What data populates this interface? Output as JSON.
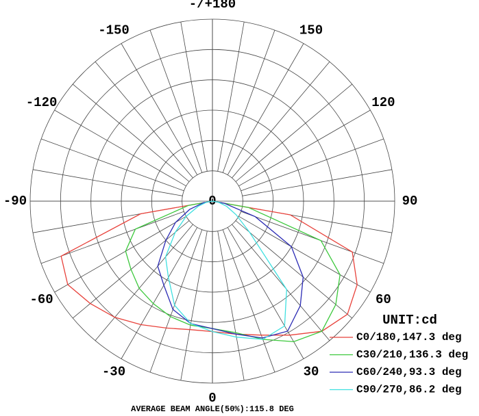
{
  "chart_data": {
    "type": "polar",
    "center_label": "0",
    "unit_label": "UNIT:cd",
    "footer": "AVERAGE BEAM ANGLE(50%):115.8 DEG",
    "rlim": [
      0,
      6
    ],
    "rticks": [
      1,
      2,
      3,
      4,
      5,
      6
    ],
    "spokes": [
      -170,
      -160,
      -150,
      -140,
      -130,
      -120,
      -110,
      -100,
      -90,
      -80,
      -70,
      -60,
      -50,
      -40,
      -30,
      -20,
      -10,
      0,
      10,
      20,
      30,
      40,
      50,
      60,
      70,
      80,
      90,
      100,
      110,
      120,
      130,
      140,
      150,
      160,
      170,
      180
    ],
    "xticks": [
      {
        "value": 180,
        "label": "-/+180"
      },
      150,
      120,
      90,
      60,
      30,
      0,
      -30,
      -60,
      -90,
      -120,
      -150
    ],
    "x": [
      -90,
      -80,
      -70,
      -60,
      -50,
      -40,
      -30,
      -20,
      -10,
      0,
      10,
      20,
      30,
      40,
      50,
      60,
      70,
      80,
      90
    ],
    "series": [
      {
        "name": "C0/180,147.3 deg",
        "color": "#e8413a",
        "values": [
          0,
          2.4,
          5.3,
          5.5,
          5.25,
          5.0,
          4.7,
          4.45,
          4.3,
          4.3,
          4.45,
          4.7,
          5.1,
          5.6,
          5.8,
          5.5,
          4.9,
          2.6,
          0
        ]
      },
      {
        "name": "C30/210,136.3 deg",
        "color": "#3cc83c",
        "values": [
          0,
          0.8,
          2.7,
          3.3,
          3.5,
          3.75,
          3.9,
          4.05,
          4.15,
          4.2,
          4.4,
          4.85,
          5.35,
          5.6,
          5.3,
          4.85,
          3.8,
          1.2,
          0
        ]
      },
      {
        "name": "C60/240,93.3 deg",
        "color": "#2a2ab4",
        "values": [
          0,
          0.3,
          0.8,
          1.4,
          2.0,
          2.8,
          3.2,
          3.8,
          4.1,
          4.2,
          4.45,
          4.8,
          4.95,
          4.5,
          3.9,
          3.0,
          1.5,
          0.4,
          0
        ]
      },
      {
        "name": "C90/270,86.2 deg",
        "color": "#3ee0e0",
        "values": [
          0,
          0.2,
          0.5,
          1.0,
          1.6,
          2.4,
          2.9,
          3.65,
          4.1,
          4.3,
          4.55,
          4.85,
          4.75,
          3.8,
          1.6,
          0.9,
          0.5,
          0.2,
          0
        ]
      }
    ]
  }
}
